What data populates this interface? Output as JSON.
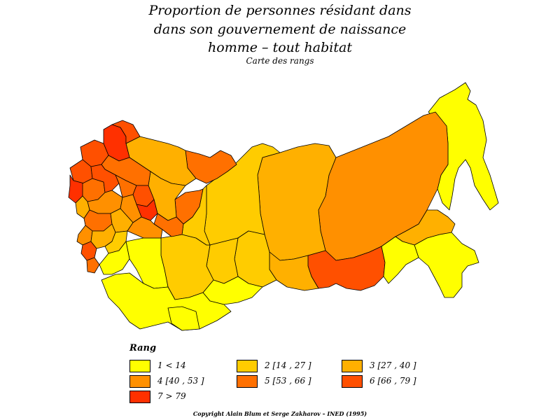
{
  "title": {
    "line1": "Proportion de personnes résidant dans",
    "line2": "dans son gouvernement de naissance",
    "line3": "homme  –  tout habitat",
    "subtitle": "Carte des rangs"
  },
  "legend": {
    "title": "Rang",
    "items": [
      {
        "label": "1  <  14",
        "color": "#ffff00"
      },
      {
        "label": "2  [14  ,  27  ]",
        "color": "#ffcc00"
      },
      {
        "label": "3  [27  ,  40  ]",
        "color": "#ffb000"
      },
      {
        "label": "4  [40  ,  53  ]",
        "color": "#ff9000"
      },
      {
        "label": "5  [53  ,  66  ]",
        "color": "#ff7000"
      },
      {
        "label": "6  [66  ,  79  ]",
        "color": "#ff5000"
      },
      {
        "label": "7  >  79",
        "color": "#ff3000"
      }
    ]
  },
  "copyright": "Copyright Alain Blum et Serge Zakharov  –  INED (1995)"
}
